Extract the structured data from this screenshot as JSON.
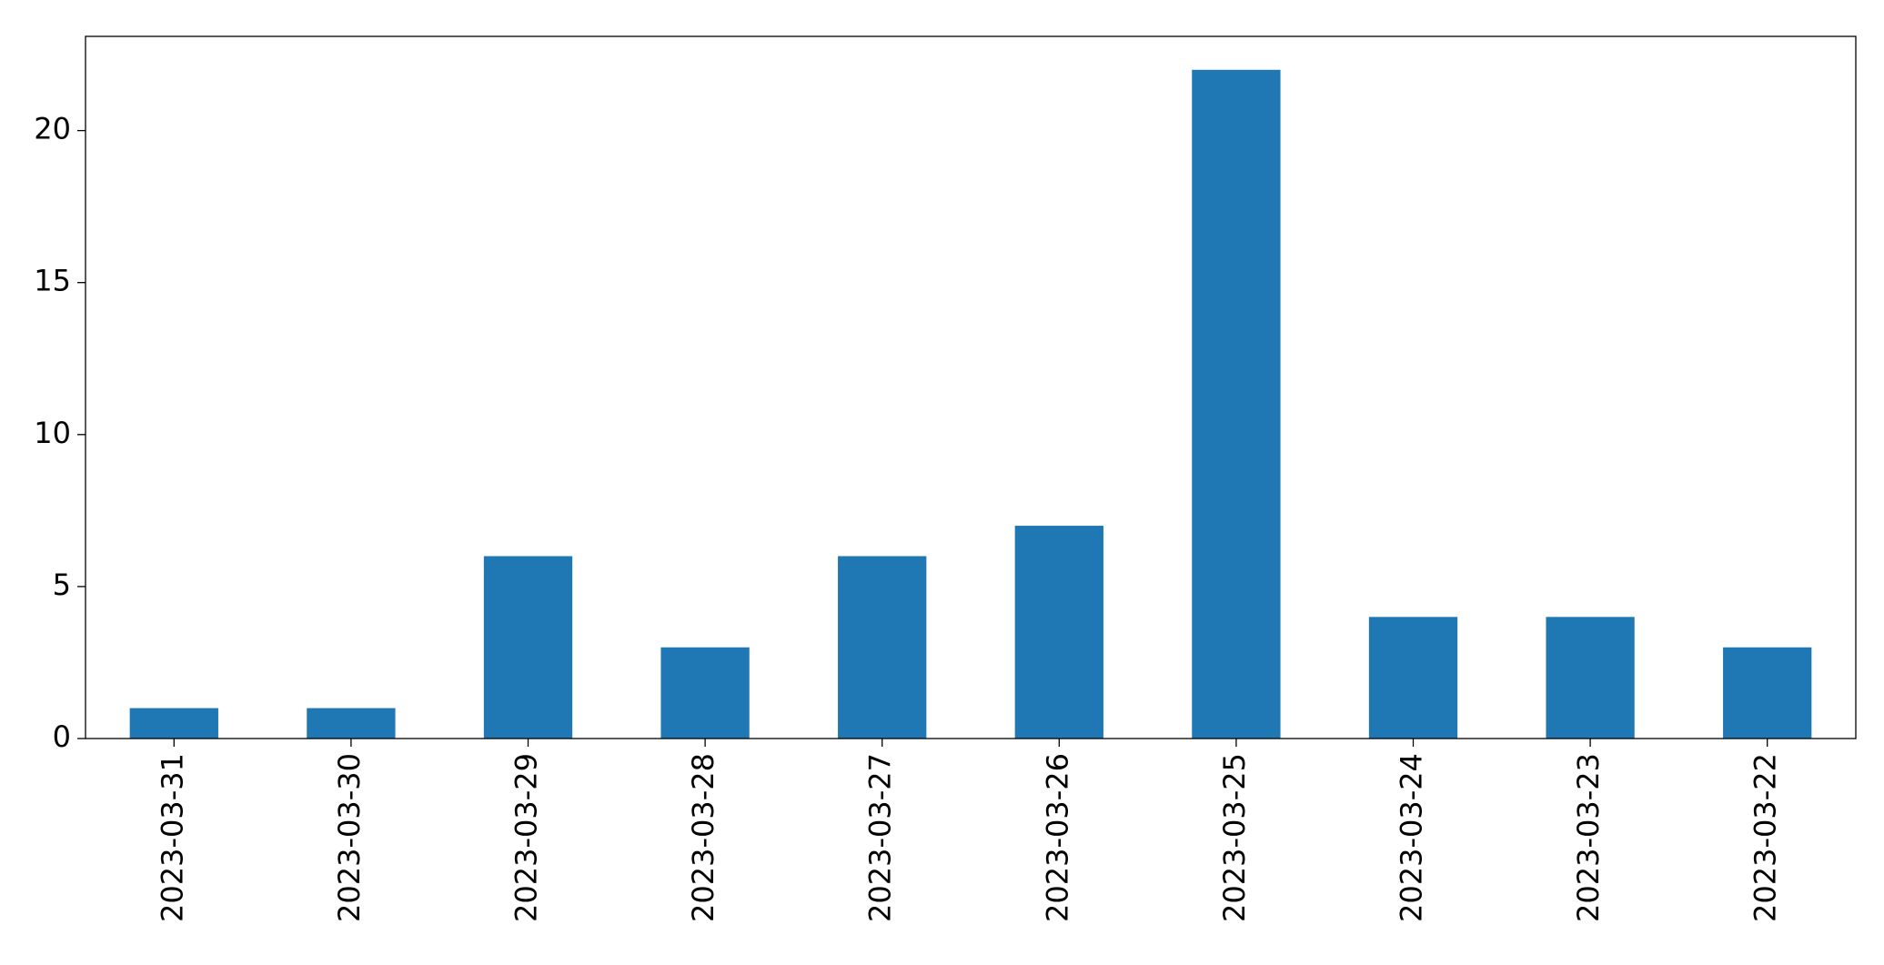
{
  "chart_data": {
    "type": "bar",
    "categories": [
      "2023-03-31",
      "2023-03-30",
      "2023-03-29",
      "2023-03-28",
      "2023-03-27",
      "2023-03-26",
      "2023-03-25",
      "2023-03-24",
      "2023-03-23",
      "2023-03-22"
    ],
    "values": [
      1,
      1,
      6,
      3,
      6,
      7,
      22,
      4,
      4,
      3
    ],
    "color": "#1f77b4",
    "ylim": [
      0,
      23.1
    ],
    "yticks": [
      0,
      5,
      10,
      15,
      20
    ],
    "grid": false
  }
}
